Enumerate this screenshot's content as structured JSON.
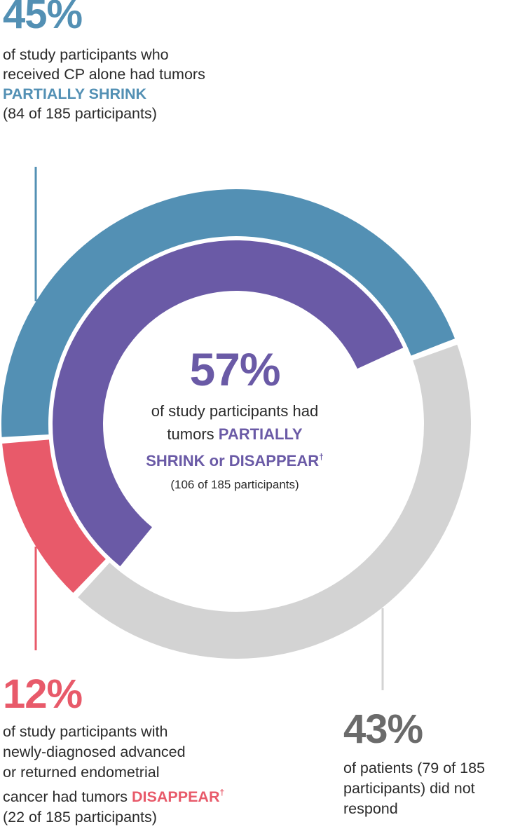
{
  "chart_data": {
    "type": "donut",
    "total_participants": 185,
    "outer_ring": [
      {
        "name": "partially shrink",
        "value": 84,
        "percent": 45,
        "color": "#5390b4"
      },
      {
        "name": "did not respond",
        "value": 79,
        "percent": 43,
        "color": "#d3d3d3"
      },
      {
        "name": "disappear",
        "value": 22,
        "percent": 12,
        "color": "#e85a6a"
      }
    ],
    "inner_ring": [
      {
        "name": "partially shrink or disappear",
        "value": 106,
        "percent": 57,
        "color": "#6a5aa6"
      }
    ]
  },
  "callouts": {
    "top": {
      "pct": "45%",
      "line1": "of study participants who",
      "line2": "received CP alone had tumors",
      "emphasis": "PARTIALLY SHRINK",
      "count": "(84 of 185 participants)"
    },
    "center": {
      "pct": "57%",
      "line1": "of study participants had",
      "line2_prefix": "tumors ",
      "emphasis_a": "PARTIALLY",
      "emphasis_b": "SHRINK or DISAPPEAR",
      "dagger": "†",
      "count": "(106 of 185 participants)"
    },
    "left": {
      "pct": "12%",
      "line1": "of study participants with",
      "line2": "newly-diagnosed advanced",
      "line3": "or returned endometrial",
      "line4_prefix": "cancer had tumors ",
      "emphasis": "DISAPPEAR",
      "dagger": "†",
      "count": "(22 of 185 participants)"
    },
    "right": {
      "pct": "43%",
      "line1": "of patients (79 of 185",
      "line2": "participants) did not",
      "line3": "respond"
    }
  },
  "colors": {
    "blue": "#5390b4",
    "purple": "#6a5aa6",
    "red": "#e85a6a",
    "gray": "#d3d3d3",
    "gray_text": "#6b6b6b",
    "text": "#2b2b2b"
  }
}
